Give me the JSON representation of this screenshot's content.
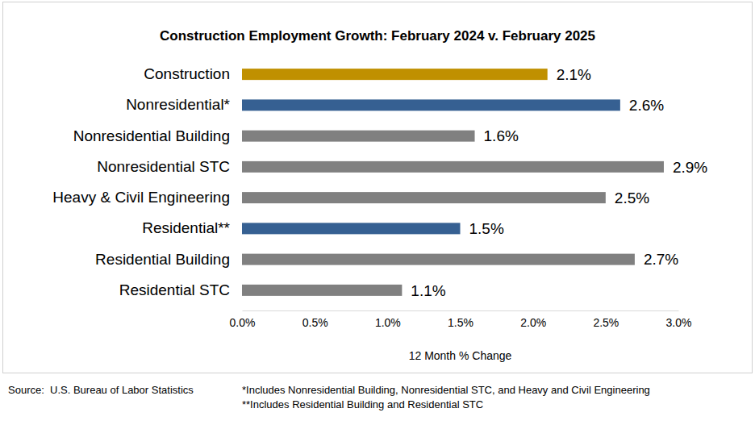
{
  "chart_data": {
    "type": "bar",
    "orientation": "horizontal",
    "title": "Construction Employment Growth: February 2024 v. February 2025",
    "categories": [
      "Construction",
      "Nonresidential*",
      "Nonresidential Building",
      "Nonresidential STC",
      "Heavy & Civil Engineering",
      "Residential**",
      "Residential Building",
      "Residential STC"
    ],
    "values": [
      2.1,
      2.6,
      1.6,
      2.9,
      2.5,
      1.5,
      2.7,
      1.1
    ],
    "value_labels": [
      "2.1%",
      "2.6%",
      "1.6%",
      "2.9%",
      "2.5%",
      "1.5%",
      "2.7%",
      "1.1%"
    ],
    "data_labels": true,
    "colors": [
      "#c09000",
      "#366092",
      "#808080",
      "#808080",
      "#808080",
      "#366092",
      "#808080",
      "#808080"
    ],
    "xlim": [
      0,
      3
    ],
    "xticks": [
      {
        "value": 0,
        "label": "0.0%"
      },
      {
        "value": 0.5,
        "label": "0.5%"
      },
      {
        "value": 1,
        "label": "1.0%"
      },
      {
        "value": 1.5,
        "label": "1.5%"
      },
      {
        "value": 2,
        "label": "2.0%"
      },
      {
        "value": 2.5,
        "label": "2.5%"
      },
      {
        "value": 3,
        "label": "3.0%"
      }
    ],
    "x_label": "12 Month % Change",
    "grid": false,
    "annotations": [
      "Source:  U.S. Bureau of Labor Statistics",
      "*Includes Nonresidential Building, Nonresidential STC, and Heavy and Civil Engineering",
      "**Includes Residential Building and Residential STC"
    ]
  }
}
